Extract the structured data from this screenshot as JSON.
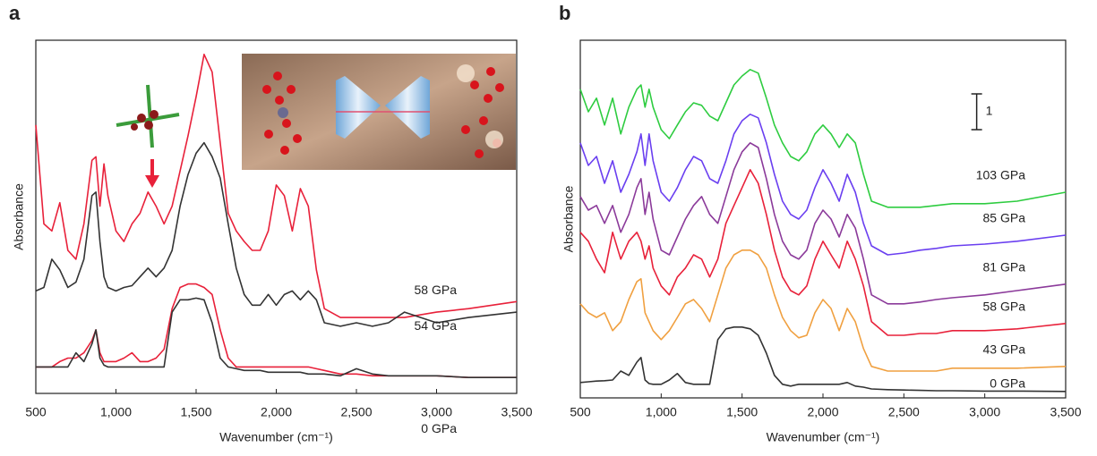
{
  "chart_data": [
    {
      "type": "line",
      "panel_label": "a",
      "y_label": "Absorbance",
      "x_label": "Wavenumber (cm⁻¹)",
      "x": [
        500,
        550,
        600,
        650,
        700,
        750,
        800,
        850,
        875,
        900,
        925,
        950,
        1000,
        1050,
        1100,
        1150,
        1200,
        1250,
        1300,
        1350,
        1400,
        1450,
        1500,
        1550,
        1600,
        1650,
        1700,
        1750,
        1800,
        1850,
        1900,
        1950,
        2000,
        2050,
        2100,
        2150,
        2200,
        2250,
        2300,
        2400,
        2500,
        2600,
        2700,
        2800,
        3000,
        3200,
        3500
      ],
      "xlim": [
        500,
        3500
      ],
      "xticks": [
        500,
        {
          "value": 1000,
          "label": "1,000"
        },
        {
          "value": 1500,
          "label": "1,500"
        },
        {
          "value": 2000,
          "label": "2,000"
        },
        {
          "value": 2500,
          "label": "2,500"
        },
        {
          "value": 3000,
          "label": "3,000"
        },
        {
          "value": 3500,
          "label": "3,500"
        }
      ],
      "ylim": [
        0,
        10
      ],
      "series": [
        {
          "name": "58 GPa",
          "color": "#e8213a",
          "values": [
            7.6,
            4.8,
            4.6,
            5.4,
            4.05,
            3.8,
            4.8,
            6.6,
            6.7,
            5.3,
            6.5,
            5.6,
            4.6,
            4.3,
            4.8,
            5.1,
            5.7,
            5.3,
            4.8,
            5.3,
            6.3,
            7.3,
            8.4,
            9.6,
            9.1,
            7.1,
            5.1,
            4.6,
            4.3,
            4.05,
            4.05,
            4.6,
            5.9,
            5.6,
            4.6,
            5.8,
            5.3,
            3.5,
            2.4,
            2.15,
            2.15,
            2.15,
            2.15,
            2.15,
            2.3,
            2.4,
            2.6
          ]
        },
        {
          "name": "54 GPa",
          "color": "#333333",
          "values": [
            2.9,
            3.0,
            3.8,
            3.5,
            3.0,
            3.15,
            3.8,
            5.6,
            5.7,
            4.3,
            3.3,
            3.0,
            2.9,
            3.0,
            3.05,
            3.3,
            3.55,
            3.3,
            3.55,
            4.05,
            5.3,
            6.2,
            6.8,
            7.1,
            6.7,
            6.1,
            4.8,
            3.55,
            2.8,
            2.5,
            2.5,
            2.8,
            2.5,
            2.8,
            2.9,
            2.65,
            2.9,
            2.65,
            2.0,
            1.9,
            2.0,
            1.9,
            2.0,
            2.3,
            2.0,
            2.15,
            2.3
          ]
        },
        {
          "color": "#e8213a",
          "values": [
            0.75,
            0.75,
            0.75,
            0.9,
            1.0,
            1.0,
            1.15,
            1.5,
            1.8,
            1.15,
            0.9,
            0.9,
            0.9,
            1.0,
            1.15,
            0.9,
            0.9,
            1.0,
            1.25,
            2.4,
            3.0,
            3.1,
            3.1,
            3.0,
            2.8,
            1.8,
            1.0,
            0.75,
            0.75,
            0.75,
            0.75,
            0.75,
            0.75,
            0.75,
            0.75,
            0.75,
            0.75,
            0.7,
            0.65,
            0.55,
            0.55,
            0.5,
            0.5,
            0.5,
            0.5,
            0.45,
            0.45
          ]
        },
        {
          "name": "0 GPa",
          "color": "#333333",
          "values": [
            0.75,
            0.75,
            0.75,
            0.75,
            0.75,
            1.15,
            0.9,
            1.4,
            1.8,
            1.0,
            0.8,
            0.75,
            0.75,
            0.75,
            0.75,
            0.75,
            0.75,
            0.75,
            0.75,
            2.3,
            2.65,
            2.65,
            2.7,
            2.65,
            2.0,
            1.0,
            0.75,
            0.7,
            0.65,
            0.65,
            0.65,
            0.6,
            0.6,
            0.6,
            0.6,
            0.6,
            0.55,
            0.55,
            0.55,
            0.5,
            0.7,
            0.55,
            0.5,
            0.5,
            0.5,
            0.45,
            0.45
          ]
        }
      ]
    },
    {
      "type": "line",
      "panel_label": "b",
      "y_label": "Absorbance",
      "x_label": "Wavenumber (cm⁻¹)",
      "scale_bar": 1,
      "x": [
        500,
        550,
        600,
        650,
        700,
        750,
        800,
        850,
        875,
        900,
        925,
        950,
        1000,
        1050,
        1100,
        1150,
        1200,
        1250,
        1300,
        1350,
        1400,
        1450,
        1500,
        1550,
        1600,
        1650,
        1700,
        1750,
        1800,
        1850,
        1900,
        1950,
        2000,
        2050,
        2100,
        2150,
        2200,
        2250,
        2300,
        2400,
        2500,
        2600,
        2700,
        2800,
        3000,
        3200,
        3500
      ],
      "xlim": [
        500,
        3500
      ],
      "xticks": [
        500,
        {
          "value": 1000,
          "label": "1,000"
        },
        {
          "value": 1500,
          "label": "1,500"
        },
        {
          "value": 2000,
          "label": "2,000"
        },
        {
          "value": 2500,
          "label": "2,500"
        },
        {
          "value": 3000,
          "label": "3,000"
        },
        {
          "value": 3500,
          "label": "3,500"
        }
      ],
      "ylim": [
        0,
        10
      ],
      "series": [
        {
          "name": "103 GPa",
          "color": "#2ecc40",
          "values": [
            8.63,
            8.0,
            8.38,
            7.63,
            8.38,
            7.38,
            8.13,
            8.63,
            8.75,
            8.13,
            8.63,
            8.13,
            7.5,
            7.25,
            7.63,
            8.0,
            8.25,
            8.18,
            7.88,
            7.75,
            8.25,
            8.75,
            9.0,
            9.18,
            9.08,
            8.38,
            7.63,
            7.13,
            6.75,
            6.63,
            6.88,
            7.38,
            7.63,
            7.38,
            7.0,
            7.38,
            7.13,
            6.25,
            5.5,
            5.33,
            5.33,
            5.33,
            5.38,
            5.43,
            5.43,
            5.5,
            5.75
          ]
        },
        {
          "name": "85 GPa",
          "color": "#6a3ff0",
          "values": [
            7.13,
            6.5,
            6.75,
            6.0,
            6.63,
            5.75,
            6.25,
            6.88,
            7.38,
            6.5,
            7.38,
            6.63,
            5.75,
            5.5,
            5.88,
            6.38,
            6.75,
            6.63,
            6.13,
            6.0,
            6.63,
            7.38,
            7.75,
            7.93,
            7.83,
            7.13,
            6.25,
            5.5,
            5.13,
            5.0,
            5.25,
            5.88,
            6.38,
            6.0,
            5.5,
            6.25,
            5.75,
            4.88,
            4.25,
            4.0,
            4.05,
            4.13,
            4.18,
            4.25,
            4.3,
            4.38,
            4.55
          ]
        },
        {
          "name": "81 GPa",
          "color": "#8b3a9a",
          "values": [
            5.63,
            5.25,
            5.38,
            4.88,
            5.38,
            4.63,
            5.13,
            5.88,
            6.13,
            5.13,
            5.75,
            5.0,
            4.13,
            4.0,
            4.5,
            5.0,
            5.38,
            5.63,
            5.13,
            4.88,
            5.63,
            6.38,
            6.88,
            7.13,
            7.0,
            6.13,
            5.13,
            4.38,
            4.0,
            3.88,
            4.13,
            4.88,
            5.25,
            5.0,
            4.5,
            5.13,
            4.75,
            3.88,
            2.88,
            2.63,
            2.63,
            2.68,
            2.75,
            2.8,
            2.88,
            3.0,
            3.18
          ]
        },
        {
          "name": "58 GPa",
          "color": "#e8213a",
          "values": [
            4.63,
            4.38,
            3.88,
            3.5,
            4.63,
            3.88,
            4.38,
            4.63,
            4.38,
            3.88,
            4.25,
            3.63,
            3.13,
            2.88,
            3.38,
            3.63,
            4.0,
            3.88,
            3.38,
            3.88,
            4.88,
            5.38,
            5.88,
            6.38,
            6.0,
            5.13,
            4.13,
            3.38,
            3.0,
            2.88,
            3.13,
            3.88,
            4.38,
            4.0,
            3.63,
            4.38,
            3.88,
            3.13,
            2.13,
            1.75,
            1.75,
            1.8,
            1.8,
            1.88,
            1.88,
            1.93,
            2.08
          ]
        },
        {
          "name": "43 GPa",
          "color": "#f0a040",
          "values": [
            2.63,
            2.38,
            2.25,
            2.38,
            1.88,
            2.13,
            2.75,
            3.25,
            3.33,
            2.38,
            2.13,
            1.88,
            1.63,
            1.88,
            2.25,
            2.63,
            2.75,
            2.5,
            2.13,
            2.88,
            3.63,
            4.0,
            4.13,
            4.13,
            4.0,
            3.63,
            2.88,
            2.25,
            1.88,
            1.68,
            1.75,
            2.38,
            2.75,
            2.5,
            1.88,
            2.5,
            2.13,
            1.38,
            0.88,
            0.75,
            0.75,
            0.75,
            0.75,
            0.83,
            0.83,
            0.83,
            0.88
          ]
        },
        {
          "name": "0 GPa",
          "color": "#333333",
          "values": [
            0.43,
            0.45,
            0.47,
            0.48,
            0.5,
            0.75,
            0.63,
            1.0,
            1.13,
            0.5,
            0.4,
            0.38,
            0.38,
            0.5,
            0.68,
            0.43,
            0.38,
            0.38,
            0.38,
            1.63,
            1.93,
            1.98,
            1.98,
            1.93,
            1.75,
            1.25,
            0.63,
            0.38,
            0.33,
            0.38,
            0.38,
            0.38,
            0.38,
            0.38,
            0.38,
            0.43,
            0.33,
            0.3,
            0.25,
            0.23,
            0.22,
            0.21,
            0.2,
            0.2,
            0.19,
            0.19,
            0.18
          ]
        }
      ]
    }
  ]
}
